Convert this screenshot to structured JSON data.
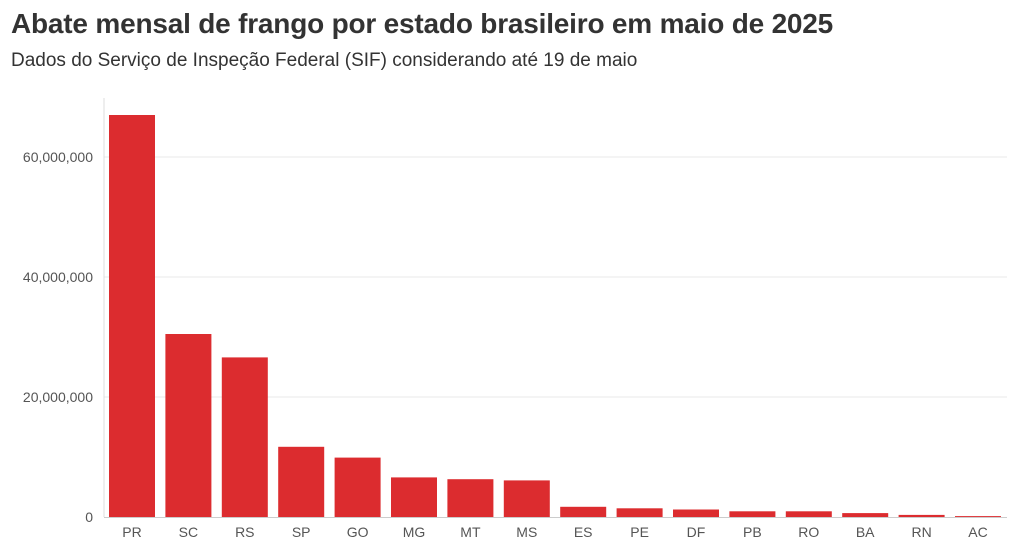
{
  "chart_data": {
    "type": "bar",
    "title": "Abate mensal de frango por estado brasileiro em maio de 2025",
    "subtitle": "Dados do Serviço de Inspeção Federal (SIF) considerando até 19 de maio",
    "categories": [
      "PR",
      "SC",
      "RS",
      "SP",
      "GO",
      "MG",
      "MT",
      "MS",
      "ES",
      "PE",
      "DF",
      "PB",
      "RO",
      "BA",
      "RN",
      "AC"
    ],
    "values": [
      67000000,
      30500000,
      26600000,
      11700000,
      9900000,
      6600000,
      6300000,
      6100000,
      1700000,
      1450000,
      1250000,
      950000,
      950000,
      650000,
      350000,
      150000
    ],
    "y_ticks": [
      0,
      20000000,
      40000000,
      60000000
    ],
    "y_tick_labels": [
      "0",
      "20,000,000",
      "40,000,000",
      "60,000,000"
    ],
    "ylim": [
      0,
      70000000
    ],
    "xlabel": "",
    "ylabel": "",
    "grid": "horizontal",
    "bar_color": "#dc2c2f",
    "legend": "none"
  }
}
